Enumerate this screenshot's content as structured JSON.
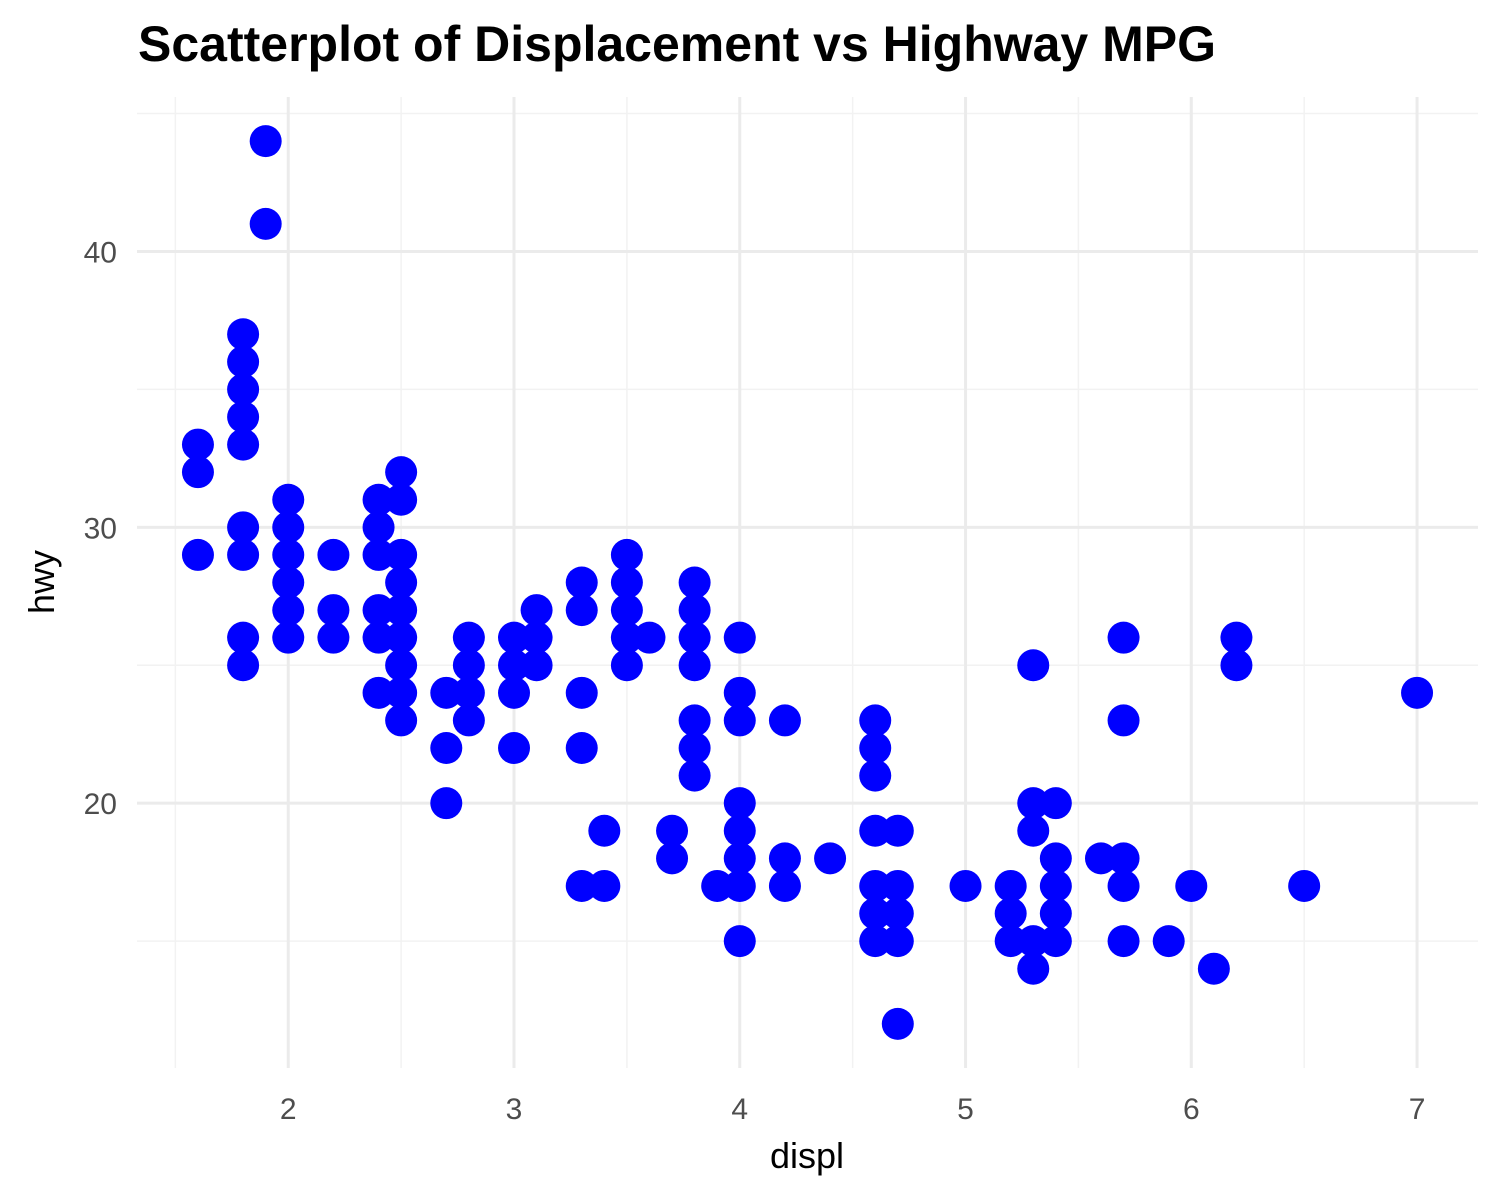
{
  "chart_data": {
    "type": "scatter",
    "title": "Scatterplot of Displacement vs Highway MPG",
    "xlabel": "displ",
    "ylabel": "hwy",
    "xlim": [
      1.33,
      7.27
    ],
    "ylim": [
      10.4,
      45.6
    ],
    "x_ticks": [
      2,
      3,
      4,
      5,
      6,
      7
    ],
    "y_ticks": [
      20,
      30,
      40
    ],
    "grid": true,
    "legend": "none",
    "point_color": "#0000ff",
    "points": [
      {
        "x": 1.6,
        "y": 33
      },
      {
        "x": 1.6,
        "y": 32
      },
      {
        "x": 1.6,
        "y": 29
      },
      {
        "x": 1.8,
        "y": 37
      },
      {
        "x": 1.8,
        "y": 36
      },
      {
        "x": 1.8,
        "y": 35
      },
      {
        "x": 1.8,
        "y": 34
      },
      {
        "x": 1.8,
        "y": 33
      },
      {
        "x": 1.8,
        "y": 30
      },
      {
        "x": 1.8,
        "y": 29
      },
      {
        "x": 1.8,
        "y": 26
      },
      {
        "x": 1.8,
        "y": 25
      },
      {
        "x": 1.9,
        "y": 44
      },
      {
        "x": 1.9,
        "y": 41
      },
      {
        "x": 2.0,
        "y": 31
      },
      {
        "x": 2.0,
        "y": 30
      },
      {
        "x": 2.0,
        "y": 29
      },
      {
        "x": 2.0,
        "y": 28
      },
      {
        "x": 2.0,
        "y": 27
      },
      {
        "x": 2.0,
        "y": 26
      },
      {
        "x": 2.2,
        "y": 29
      },
      {
        "x": 2.2,
        "y": 27
      },
      {
        "x": 2.2,
        "y": 26
      },
      {
        "x": 2.4,
        "y": 31
      },
      {
        "x": 2.4,
        "y": 30
      },
      {
        "x": 2.4,
        "y": 29
      },
      {
        "x": 2.4,
        "y": 27
      },
      {
        "x": 2.4,
        "y": 26
      },
      {
        "x": 2.4,
        "y": 24
      },
      {
        "x": 2.5,
        "y": 32
      },
      {
        "x": 2.5,
        "y": 31
      },
      {
        "x": 2.5,
        "y": 29
      },
      {
        "x": 2.5,
        "y": 28
      },
      {
        "x": 2.5,
        "y": 27
      },
      {
        "x": 2.5,
        "y": 26
      },
      {
        "x": 2.5,
        "y": 25
      },
      {
        "x": 2.5,
        "y": 24
      },
      {
        "x": 2.5,
        "y": 23
      },
      {
        "x": 2.7,
        "y": 24
      },
      {
        "x": 2.7,
        "y": 22
      },
      {
        "x": 2.7,
        "y": 20
      },
      {
        "x": 2.8,
        "y": 26
      },
      {
        "x": 2.8,
        "y": 25
      },
      {
        "x": 2.8,
        "y": 24
      },
      {
        "x": 2.8,
        "y": 23
      },
      {
        "x": 3.0,
        "y": 26
      },
      {
        "x": 3.0,
        "y": 25
      },
      {
        "x": 3.0,
        "y": 24
      },
      {
        "x": 3.0,
        "y": 22
      },
      {
        "x": 3.1,
        "y": 27
      },
      {
        "x": 3.1,
        "y": 26
      },
      {
        "x": 3.1,
        "y": 25
      },
      {
        "x": 3.3,
        "y": 28
      },
      {
        "x": 3.3,
        "y": 27
      },
      {
        "x": 3.3,
        "y": 24
      },
      {
        "x": 3.3,
        "y": 22
      },
      {
        "x": 3.3,
        "y": 17
      },
      {
        "x": 3.4,
        "y": 19
      },
      {
        "x": 3.4,
        "y": 17
      },
      {
        "x": 3.5,
        "y": 29
      },
      {
        "x": 3.5,
        "y": 28
      },
      {
        "x": 3.5,
        "y": 27
      },
      {
        "x": 3.5,
        "y": 26
      },
      {
        "x": 3.5,
        "y": 25
      },
      {
        "x": 3.6,
        "y": 26
      },
      {
        "x": 3.7,
        "y": 19
      },
      {
        "x": 3.7,
        "y": 18
      },
      {
        "x": 3.8,
        "y": 28
      },
      {
        "x": 3.8,
        "y": 27
      },
      {
        "x": 3.8,
        "y": 26
      },
      {
        "x": 3.8,
        "y": 25
      },
      {
        "x": 3.8,
        "y": 23
      },
      {
        "x": 3.8,
        "y": 22
      },
      {
        "x": 3.8,
        "y": 21
      },
      {
        "x": 3.9,
        "y": 17
      },
      {
        "x": 4.0,
        "y": 26
      },
      {
        "x": 4.0,
        "y": 24
      },
      {
        "x": 4.0,
        "y": 23
      },
      {
        "x": 4.0,
        "y": 20
      },
      {
        "x": 4.0,
        "y": 19
      },
      {
        "x": 4.0,
        "y": 18
      },
      {
        "x": 4.0,
        "y": 17
      },
      {
        "x": 4.0,
        "y": 15
      },
      {
        "x": 4.2,
        "y": 23
      },
      {
        "x": 4.2,
        "y": 18
      },
      {
        "x": 4.2,
        "y": 17
      },
      {
        "x": 4.4,
        "y": 18
      },
      {
        "x": 4.6,
        "y": 23
      },
      {
        "x": 4.6,
        "y": 22
      },
      {
        "x": 4.6,
        "y": 21
      },
      {
        "x": 4.6,
        "y": 19
      },
      {
        "x": 4.6,
        "y": 17
      },
      {
        "x": 4.6,
        "y": 16
      },
      {
        "x": 4.6,
        "y": 15
      },
      {
        "x": 4.7,
        "y": 19
      },
      {
        "x": 4.7,
        "y": 17
      },
      {
        "x": 4.7,
        "y": 16
      },
      {
        "x": 4.7,
        "y": 15
      },
      {
        "x": 4.7,
        "y": 12
      },
      {
        "x": 5.0,
        "y": 17
      },
      {
        "x": 5.2,
        "y": 17
      },
      {
        "x": 5.2,
        "y": 16
      },
      {
        "x": 5.2,
        "y": 15
      },
      {
        "x": 5.3,
        "y": 25
      },
      {
        "x": 5.3,
        "y": 20
      },
      {
        "x": 5.3,
        "y": 19
      },
      {
        "x": 5.3,
        "y": 15
      },
      {
        "x": 5.3,
        "y": 14
      },
      {
        "x": 5.4,
        "y": 20
      },
      {
        "x": 5.4,
        "y": 18
      },
      {
        "x": 5.4,
        "y": 17
      },
      {
        "x": 5.4,
        "y": 16
      },
      {
        "x": 5.4,
        "y": 15
      },
      {
        "x": 5.6,
        "y": 18
      },
      {
        "x": 5.7,
        "y": 26
      },
      {
        "x": 5.7,
        "y": 23
      },
      {
        "x": 5.7,
        "y": 18
      },
      {
        "x": 5.7,
        "y": 17
      },
      {
        "x": 5.7,
        "y": 15
      },
      {
        "x": 5.9,
        "y": 15
      },
      {
        "x": 6.0,
        "y": 17
      },
      {
        "x": 6.1,
        "y": 14
      },
      {
        "x": 6.2,
        "y": 26
      },
      {
        "x": 6.2,
        "y": 25
      },
      {
        "x": 6.5,
        "y": 17
      },
      {
        "x": 7.0,
        "y": 24
      }
    ]
  }
}
